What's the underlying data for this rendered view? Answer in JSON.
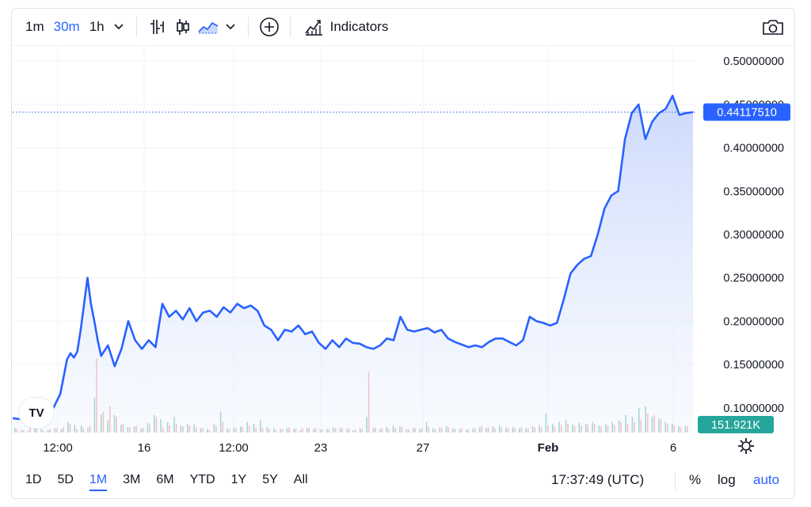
{
  "toolbar": {
    "intervals": [
      "1m",
      "30m",
      "1h"
    ],
    "active_interval": "30m",
    "indicators_label": "Indicators"
  },
  "bottombar": {
    "ranges": [
      "1D",
      "5D",
      "1M",
      "3M",
      "6M",
      "YTD",
      "1Y",
      "5Y",
      "All"
    ],
    "active_range": "1M",
    "clock": "17:37:49 (UTC)",
    "percent_label": "%",
    "log_label": "log",
    "auto_label": "auto"
  },
  "logo_text": "TV",
  "colors": {
    "line": "#2962ff",
    "area_top": "#c9d7fb",
    "up_volume": "#5fb6a6",
    "down_volume": "#ef8f8c",
    "price_tag": "#2962ff",
    "volume_tag": "#26a69a"
  },
  "chart_data": {
    "type": "area",
    "y_axis": {
      "range": [
        0.0715,
        0.5175
      ],
      "tick_values": [
        0.1,
        0.15,
        0.2,
        0.25,
        0.3,
        0.35,
        0.4,
        0.45,
        0.5
      ],
      "tick_labels": [
        "0.10000000",
        "0.15000000",
        "0.20000000",
        "0.25000000",
        "0.30000000",
        "0.35000000",
        "0.40000000",
        "0.45000000",
        "0.50000000"
      ],
      "position": "right"
    },
    "x_axis": {
      "tick_labels": [
        "12:00",
        "16",
        "12:00",
        "23",
        "27",
        "Feb",
        "6"
      ],
      "range": [
        0,
        100
      ]
    },
    "current_price": 0.4411751,
    "current_price_label": "0.44117510",
    "volume_label": "151.921K",
    "grid": true,
    "series": [
      {
        "x": [
          0,
          1,
          2,
          2.5,
          3,
          4,
          5,
          6,
          7,
          8,
          8.5,
          9,
          9.5,
          10,
          11,
          11.5,
          12,
          12.5,
          13,
          14,
          15,
          16,
          17,
          18,
          19,
          20,
          21,
          22,
          23,
          24,
          25,
          26,
          27,
          28,
          29,
          30,
          31,
          32,
          33,
          34,
          35,
          36,
          37,
          38,
          39,
          40,
          41,
          42,
          43,
          44,
          45,
          46,
          47,
          48,
          49,
          50,
          51,
          52,
          53,
          54,
          55,
          56,
          57,
          58,
          59,
          60,
          61,
          62,
          63,
          64,
          65,
          66,
          67,
          68,
          69,
          70,
          71,
          72,
          73,
          74,
          75,
          76,
          77,
          78,
          79,
          80,
          81,
          82,
          83,
          84,
          85,
          86,
          87,
          88,
          89,
          90,
          91,
          92,
          93,
          94,
          95,
          96,
          97,
          98,
          99,
          100
        ],
        "values": [
          0.088,
          0.087,
          0.089,
          0.097,
          0.086,
          0.087,
          0.092,
          0.1,
          0.116,
          0.156,
          0.163,
          0.158,
          0.165,
          0.19,
          0.25,
          0.22,
          0.2,
          0.178,
          0.16,
          0.172,
          0.148,
          0.168,
          0.2,
          0.178,
          0.168,
          0.178,
          0.17,
          0.22,
          0.205,
          0.212,
          0.202,
          0.215,
          0.2,
          0.21,
          0.212,
          0.205,
          0.216,
          0.21,
          0.22,
          0.215,
          0.218,
          0.212,
          0.195,
          0.19,
          0.178,
          0.19,
          0.188,
          0.195,
          0.185,
          0.188,
          0.175,
          0.168,
          0.178,
          0.17,
          0.18,
          0.175,
          0.174,
          0.17,
          0.168,
          0.172,
          0.18,
          0.178,
          0.205,
          0.19,
          0.188,
          0.19,
          0.192,
          0.187,
          0.19,
          0.18,
          0.176,
          0.173,
          0.17,
          0.172,
          0.17,
          0.176,
          0.18,
          0.18,
          0.176,
          0.172,
          0.178,
          0.205,
          0.2,
          0.198,
          0.195,
          0.198,
          0.225,
          0.255,
          0.265,
          0.272,
          0.275,
          0.3,
          0.33,
          0.345,
          0.35,
          0.41,
          0.44,
          0.45,
          0.41,
          0.43,
          0.44,
          0.445,
          0.46,
          0.438,
          0.44,
          0.4411751
        ]
      }
    ],
    "volume": {
      "up_bars": [
        0.05,
        0.03,
        0.02,
        0.15,
        0.04,
        0.03,
        0.05,
        0.04,
        0.12,
        0.09,
        0.08,
        0.05,
        0.4,
        0.21,
        0.14,
        0.2,
        0.09,
        0.06,
        0.07,
        0.05,
        0.11,
        0.2,
        0.15,
        0.12,
        0.18,
        0.08,
        0.1,
        0.09,
        0.05,
        0.04,
        0.1,
        0.24,
        0.05,
        0.06,
        0.07,
        0.12,
        0.1,
        0.14,
        0.06,
        0.05,
        0.04,
        0.05,
        0.04,
        0.03,
        0.05,
        0.04,
        0.03,
        0.04,
        0.06,
        0.05,
        0.04,
        0.03,
        0.05,
        0.18,
        0.05,
        0.04,
        0.06,
        0.08,
        0.07,
        0.04,
        0.05,
        0.04,
        0.12,
        0.05,
        0.06,
        0.07,
        0.05,
        0.04,
        0.03,
        0.05,
        0.06,
        0.05,
        0.07,
        0.08,
        0.06,
        0.06,
        0.05,
        0.05,
        0.07,
        0.08,
        0.22,
        0.1,
        0.12,
        0.15,
        0.09,
        0.11,
        0.1,
        0.12,
        0.08,
        0.1,
        0.12,
        0.14,
        0.2,
        0.18,
        0.28,
        0.3,
        0.18,
        0.16,
        0.12,
        0.1,
        0.07,
        0.08
      ],
      "down_bars": [
        0.04,
        0.03,
        0.06,
        0.05,
        0.02,
        0.04,
        0.05,
        0.06,
        0.1,
        0.04,
        0.05,
        0.08,
        0.85,
        0.24,
        0.3,
        0.18,
        0.1,
        0.06,
        0.08,
        0.05,
        0.09,
        0.18,
        0.06,
        0.08,
        0.1,
        0.07,
        0.08,
        0.06,
        0.05,
        0.03,
        0.08,
        0.12,
        0.04,
        0.05,
        0.06,
        0.08,
        0.05,
        0.05,
        0.04,
        0.03,
        0.04,
        0.06,
        0.05,
        0.05,
        0.06,
        0.05,
        0.04,
        0.04,
        0.05,
        0.05,
        0.05,
        0.03,
        0.04,
        0.7,
        0.06,
        0.05,
        0.04,
        0.05,
        0.06,
        0.04,
        0.05,
        0.05,
        0.07,
        0.04,
        0.05,
        0.06,
        0.04,
        0.05,
        0.04,
        0.05,
        0.07,
        0.06,
        0.05,
        0.06,
        0.05,
        0.05,
        0.06,
        0.05,
        0.06,
        0.06,
        0.08,
        0.07,
        0.09,
        0.1,
        0.07,
        0.08,
        0.09,
        0.1,
        0.07,
        0.08,
        0.09,
        0.12,
        0.1,
        0.12,
        0.15,
        0.22,
        0.2,
        0.15,
        0.1,
        0.08,
        0.06,
        0.07
      ]
    }
  }
}
